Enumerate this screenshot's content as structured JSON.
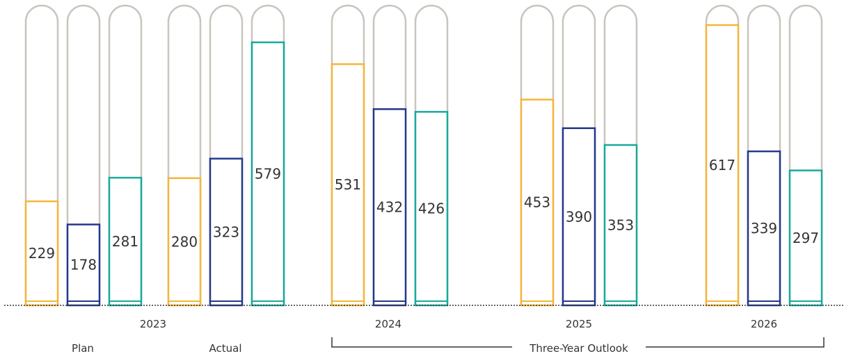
{
  "chart_data": {
    "type": "bar",
    "categories": [
      "2023 Plan",
      "2023 Actual",
      "2024",
      "2025",
      "2026"
    ],
    "group_labels": {
      "year_2023": "2023",
      "plan": "Plan",
      "actual": "Actual",
      "year_2024": "2024",
      "year_2025": "2025",
      "year_2026": "2026",
      "outlook": "Three-Year Outlook"
    },
    "series": [
      {
        "values": [
          229,
          280,
          531,
          453,
          617
        ],
        "color": "#F4B63A"
      },
      {
        "values": [
          178,
          323,
          432,
          390,
          339
        ],
        "color": "#23378D"
      },
      {
        "values": [
          281,
          579,
          426,
          353,
          297
        ],
        "color": "#17A99B"
      }
    ],
    "ylim": [
      0,
      660
    ],
    "capsule_color": "#C9C5BE",
    "baseline_style": "dotted",
    "title": "",
    "xlabel": "",
    "ylabel": ""
  }
}
